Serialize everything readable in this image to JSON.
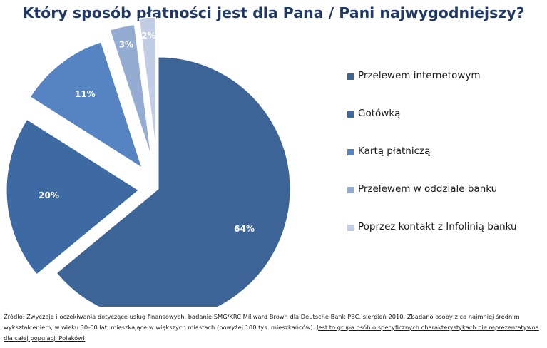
{
  "chart_data": {
    "type": "pie",
    "title": "Który sposób płatności jest dla Pana / Pani najwygodniejszy?",
    "categories": [
      "Przelewem internetowym",
      "Gotówką",
      "Kartą płatniczą",
      "Przelewem w oddziale banku",
      "Poprzez kontakt  z Infolinią banku"
    ],
    "values": [
      64,
      20,
      11,
      3,
      2
    ],
    "value_labels": [
      "64%",
      "20%",
      "11%",
      "3%",
      "2%"
    ],
    "colors": [
      "#3d6496",
      "#3d6aa3",
      "#5683c2",
      "#94acd1",
      "#c0cde4"
    ],
    "exploded": true,
    "legend_position": "right"
  },
  "source_note": {
    "text": "Źródło: Zwyczaje i oczekiwania dotyczące usług finansowych, badanie SMG/KRC Millward Brown dla Deutsche Bank PBC, sierpień 2010. Zbadano osoby z co najmniej średnim wykształceniem, w wieku 30-60 lat, mieszkające w większych miastach (powyżej 100 tys. mieszkańców). ",
    "link_text": "Jest to grupa osób o specyficznych charakterystykach nie reprezentatywna dla całej populacji Polaków!"
  }
}
